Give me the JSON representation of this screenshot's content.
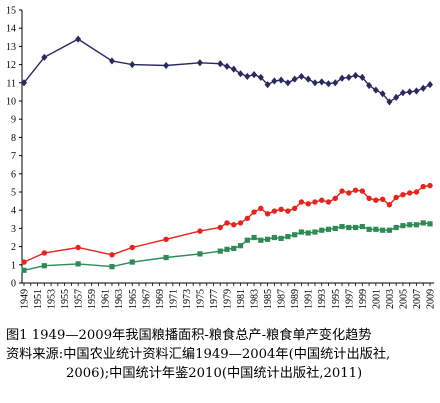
{
  "chart_data": {
    "type": "line",
    "title": "",
    "xlabel": "",
    "ylabel": "",
    "ylim": [
      0,
      15
    ],
    "yticks": [
      "0",
      "1",
      "2",
      "3",
      "4",
      "5",
      "6",
      "7",
      "8",
      "9",
      "10",
      "11",
      "12",
      "13",
      "14",
      "15"
    ],
    "xtick_labels": [
      "1949",
      "1951",
      "1953",
      "1955",
      "1957",
      "1959",
      "1961",
      "1963",
      "1965",
      "1967",
      "1969",
      "1971",
      "1973",
      "1975",
      "1977",
      "1979",
      "1981",
      "1983",
      "1985",
      "1987",
      "1989",
      "1991",
      "1993",
      "1995",
      "1997",
      "1999",
      "2001",
      "2003",
      "2005",
      "2007",
      "2009"
    ],
    "grid": false,
    "legend": "none",
    "series": [
      {
        "color": "#2b2a5e",
        "marker": "diamond",
        "x": [
          1949,
          1952,
          1957,
          1962,
          1965,
          1970,
          1975,
          1978,
          1979,
          1980,
          1981,
          1982,
          1983,
          1984,
          1985,
          1986,
          1987,
          1988,
          1989,
          1990,
          1991,
          1992,
          1993,
          1994,
          1995,
          1996,
          1997,
          1998,
          1999,
          2000,
          2001,
          2002,
          2003,
          2004,
          2005,
          2006,
          2007,
          2008,
          2009
        ],
        "values": [
          11.0,
          12.4,
          13.4,
          12.2,
          12.0,
          11.95,
          12.1,
          12.05,
          11.9,
          11.75,
          11.5,
          11.35,
          11.45,
          11.3,
          10.9,
          11.1,
          11.15,
          11.0,
          11.2,
          11.35,
          11.2,
          11.0,
          11.05,
          10.95,
          11.0,
          11.25,
          11.3,
          11.4,
          11.3,
          10.85,
          10.6,
          10.4,
          9.95,
          10.2,
          10.45,
          10.5,
          10.55,
          10.7,
          10.9
        ]
      },
      {
        "color": "#e8231c",
        "marker": "circle",
        "x": [
          1949,
          1952,
          1957,
          1962,
          1965,
          1970,
          1975,
          1978,
          1979,
          1980,
          1981,
          1982,
          1983,
          1984,
          1985,
          1986,
          1987,
          1988,
          1989,
          1990,
          1991,
          1992,
          1993,
          1994,
          1995,
          1996,
          1997,
          1998,
          1999,
          2000,
          2001,
          2002,
          2003,
          2004,
          2005,
          2006,
          2007,
          2008,
          2009
        ],
        "values": [
          1.15,
          1.65,
          1.95,
          1.55,
          1.95,
          2.4,
          2.85,
          3.05,
          3.3,
          3.2,
          3.3,
          3.55,
          3.9,
          4.1,
          3.8,
          3.95,
          4.05,
          3.95,
          4.1,
          4.45,
          4.35,
          4.45,
          4.55,
          4.45,
          4.65,
          5.05,
          4.95,
          5.1,
          5.05,
          4.65,
          4.55,
          4.6,
          4.3,
          4.7,
          4.85,
          4.95,
          5.0,
          5.3,
          5.35
        ]
      },
      {
        "color": "#2e8b57",
        "marker": "square",
        "x": [
          1949,
          1952,
          1957,
          1962,
          1965,
          1970,
          1975,
          1978,
          1979,
          1980,
          1981,
          1982,
          1983,
          1984,
          1985,
          1986,
          1987,
          1988,
          1989,
          1990,
          1991,
          1992,
          1993,
          1994,
          1995,
          1996,
          1997,
          1998,
          1999,
          2000,
          2001,
          2002,
          2003,
          2004,
          2005,
          2006,
          2007,
          2008,
          2009
        ],
        "values": [
          0.7,
          0.95,
          1.05,
          0.9,
          1.15,
          1.4,
          1.6,
          1.75,
          1.85,
          1.9,
          2.05,
          2.35,
          2.5,
          2.35,
          2.4,
          2.5,
          2.45,
          2.55,
          2.65,
          2.8,
          2.75,
          2.8,
          2.9,
          2.95,
          3.0,
          3.1,
          3.05,
          3.05,
          3.1,
          2.95,
          2.95,
          2.9,
          2.9,
          3.05,
          3.15,
          3.2,
          3.2,
          3.3,
          3.25
        ]
      }
    ]
  },
  "caption": {
    "line1": "图1  1949—2009年我国粮播面积-粮食总产-粮食单产变化趋势",
    "line2": "资料来源:中国农业统计资料汇编1949—2004年(中国统计出版社,",
    "line3": "2006);中国统计年鉴2010(中国统计出版社,2011)"
  }
}
